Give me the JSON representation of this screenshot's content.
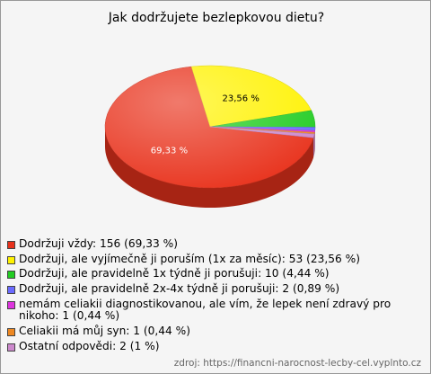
{
  "chart_data": {
    "type": "pie",
    "title": "Jak dodržujete bezlepkovou dietu?",
    "categories": [
      "Dodržuji vždy: 156 (69,33 %)",
      "Dodržuji, ale vyjímečně ji poruším (1x za měsíc): 53 (23,56 %)",
      "Dodržuji, ale pravidelně 1x týdně ji porušuji: 10 (4,44 %)",
      "Dodržuji, ale pravidelně 2x-4x týdně ji porušuji: 2 (0,89 %)",
      "nemám celiakii diagnostikovanou, ale vím, že lepek není zdravý pro nikoho: 1 (0,44 %)",
      "Celiakii má můj syn: 1 (0,44 %)",
      "Ostatní odpovědi: 2 (1 %)"
    ],
    "values": [
      69.33,
      23.56,
      4.44,
      0.89,
      0.44,
      0.44,
      1
    ],
    "value_labels": [
      "69,33 %",
      "23,56 %",
      null,
      null,
      null,
      null,
      null
    ],
    "colors": [
      "#e8321c",
      "#fff200",
      "#22cc22",
      "#6a6aff",
      "#dd33dd",
      "#ee8822",
      "#cc88cc"
    ],
    "source": "zdroj: https://financni-narocnost-lecby-cel.vyplnto.cz"
  }
}
